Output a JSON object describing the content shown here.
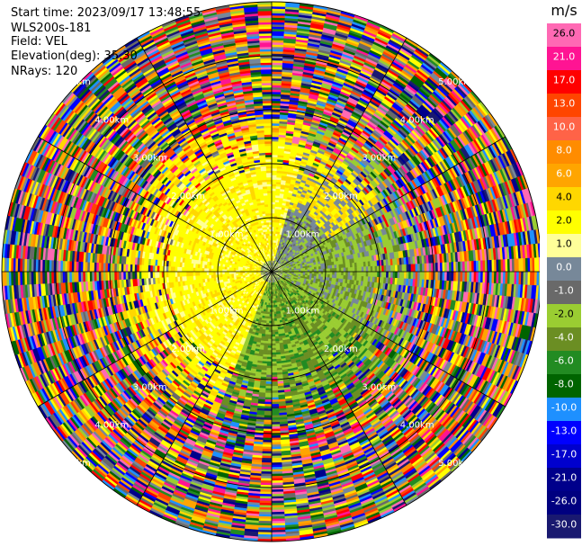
{
  "header": {
    "start_time": "Start time: 2023/09/17 13:48:55",
    "instrument": "WLS200s-181",
    "field": "Field: VEL",
    "elevation": "Elevation(deg): 35.30",
    "nrays": "NRays: 120"
  },
  "chart_data": {
    "type": "heatmap",
    "projection": "polar-ppi",
    "field": "VEL",
    "units": "m/s",
    "nrays": 120,
    "elevation_deg": 35.3,
    "range_ring_labels": [
      "1.00km",
      "2.00km",
      "3.00km",
      "4.00km",
      "5.00km"
    ],
    "range_rings_km": [
      1,
      2,
      3,
      4,
      5
    ],
    "max_range_km": 5.0,
    "colorbar": {
      "title": "m/s",
      "ticks": [
        "26.0",
        "21.0",
        "17.0",
        "13.0",
        "10.0",
        "8.0",
        "6.0",
        "4.0",
        "2.0",
        "1.0",
        "0.0",
        "-1.0",
        "-2.0",
        "-4.0",
        "-6.0",
        "-8.0",
        "-10.0",
        "-13.0",
        "-17.0",
        "-21.0",
        "-26.0",
        "-30.0"
      ],
      "colors": [
        "#ff69b4",
        "#ff1493",
        "#ff0000",
        "#ff4500",
        "#ff6347",
        "#ff8c00",
        "#ffa500",
        "#ffd700",
        "#ffff00",
        "#ffff99",
        "#778899",
        "#696969",
        "#9acd32",
        "#6b8e23",
        "#228b22",
        "#006400",
        "#1e90ff",
        "#0000ff",
        "#0000cd",
        "#00008b",
        "#000080",
        "#191970"
      ]
    }
  }
}
